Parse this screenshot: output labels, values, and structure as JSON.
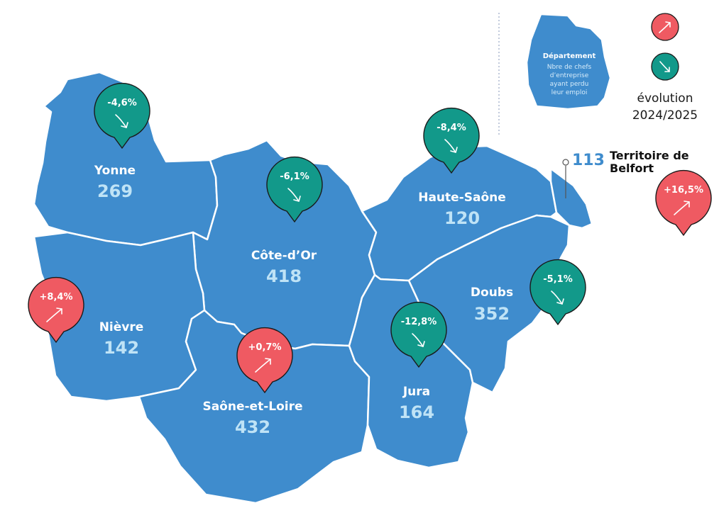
{
  "colors": {
    "region_fill": "#3f8ccd",
    "border": "#ffffff",
    "increase": "#ef5a62",
    "decrease": "#12998a",
    "value_text": "#bfe3f6"
  },
  "departments": [
    {
      "key": "yonne",
      "name": "Yonne",
      "value": "269",
      "evolution": "-4,6%",
      "trend": "down"
    },
    {
      "key": "cote-d-or",
      "name": "Côte-d’Or",
      "value": "418",
      "evolution": "-6,1%",
      "trend": "down"
    },
    {
      "key": "haute-saone",
      "name": "Haute-Saône",
      "value": "120",
      "evolution": "-8,4%",
      "trend": "down"
    },
    {
      "key": "nievre",
      "name": "Nièvre",
      "value": "142",
      "evolution": "+8,4%",
      "trend": "up"
    },
    {
      "key": "saone-et-loire",
      "name": "Saône-et-Loire",
      "value": "432",
      "evolution": "+0,7%",
      "trend": "up"
    },
    {
      "key": "doubs",
      "name": "Doubs",
      "value": "352",
      "evolution": "-5,1%",
      "trend": "down"
    },
    {
      "key": "jura",
      "name": "Jura",
      "value": "164",
      "evolution": "-12,8%",
      "trend": "down"
    },
    {
      "key": "territoire-de-belfort",
      "name_line1": "Territoire de",
      "name_line2": "Belfort",
      "value": "113",
      "evolution": "+16,5%",
      "trend": "up"
    }
  ],
  "legend": {
    "title": "Département",
    "lines": [
      "Nbre de chefs",
      "d’entreprise",
      "ayant perdu",
      "leur emploi"
    ],
    "evolution_label": "évolution",
    "period": "2024/2025",
    "icons": [
      "arrow-up-right-icon",
      "arrow-down-right-icon"
    ]
  }
}
